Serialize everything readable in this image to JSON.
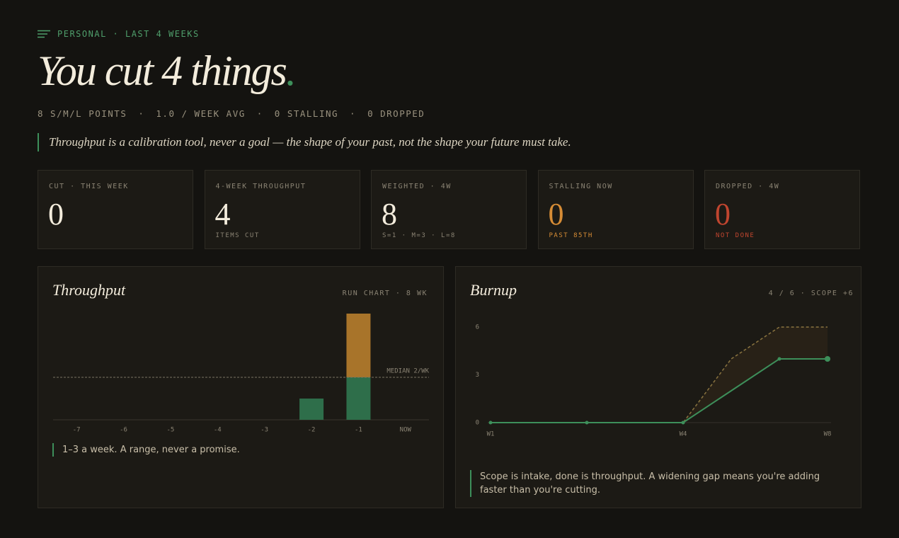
{
  "header": {
    "breadcrumb": "PERSONAL · LAST 4 WEEKS",
    "title": "You cut 4 things",
    "title_mark": ".",
    "summary": [
      "8 S/M/L POINTS",
      "1.0 / WEEK AVG",
      "0 STALLING",
      "0 DROPPED"
    ],
    "quote": "Throughput is a calibration tool, never a goal — the shape of your past, not the shape your future must take."
  },
  "stats": [
    {
      "label": "CUT · THIS WEEK",
      "value": 0
    },
    {
      "label": "4-WEEK THROUGHPUT",
      "value": 4,
      "note": "ITEMS CUT"
    },
    {
      "label": "WEIGHTED · 4W",
      "value": 8,
      "note": "S=1 · M=3 · L=8"
    },
    {
      "label": "STALLING NOW",
      "value": 0,
      "note": "PAST 85TH"
    },
    {
      "label": "DROPPED · 4W",
      "value": 0,
      "note": "NOT DONE"
    }
  ],
  "throughput": {
    "type": "bar",
    "title": "Throughput",
    "subtitle": "RUN CHART · 8 WK",
    "categories": [
      "-7",
      "-6",
      "-5",
      "-4",
      "-3",
      "-2",
      "-1",
      "NOW"
    ],
    "series": [
      {
        "color": "#2e6e4a",
        "values": [
          0,
          0,
          0,
          0,
          0,
          1,
          2,
          0
        ]
      },
      {
        "color": "#a8742a",
        "values": [
          0,
          0,
          0,
          0,
          0,
          0,
          3,
          0
        ]
      }
    ],
    "ylim": [
      0,
      5
    ],
    "median": {
      "value": 2,
      "label": "MEDIAN 2/WK"
    },
    "note": "1–3 a week. A range, never a promise."
  },
  "burnup": {
    "type": "line",
    "title": "Burnup",
    "subtitle": "4 / 6 · SCOPE +6",
    "categories": [
      "W1",
      null,
      null,
      null,
      "W4",
      null,
      null,
      "W8"
    ],
    "series": [
      {
        "color": "#3d8f5a",
        "values": [
          0,
          0,
          0,
          0,
          0,
          2,
          4,
          4
        ]
      },
      {
        "color": "#8a7440",
        "values": [
          0,
          0,
          0,
          0,
          0,
          4,
          6,
          6
        ]
      }
    ],
    "ylim": [
      0,
      6
    ],
    "yticks": [
      0,
      3,
      6
    ],
    "note": "Scope is intake, done is throughput. A widening gap means you're adding faster than you're cutting."
  }
}
